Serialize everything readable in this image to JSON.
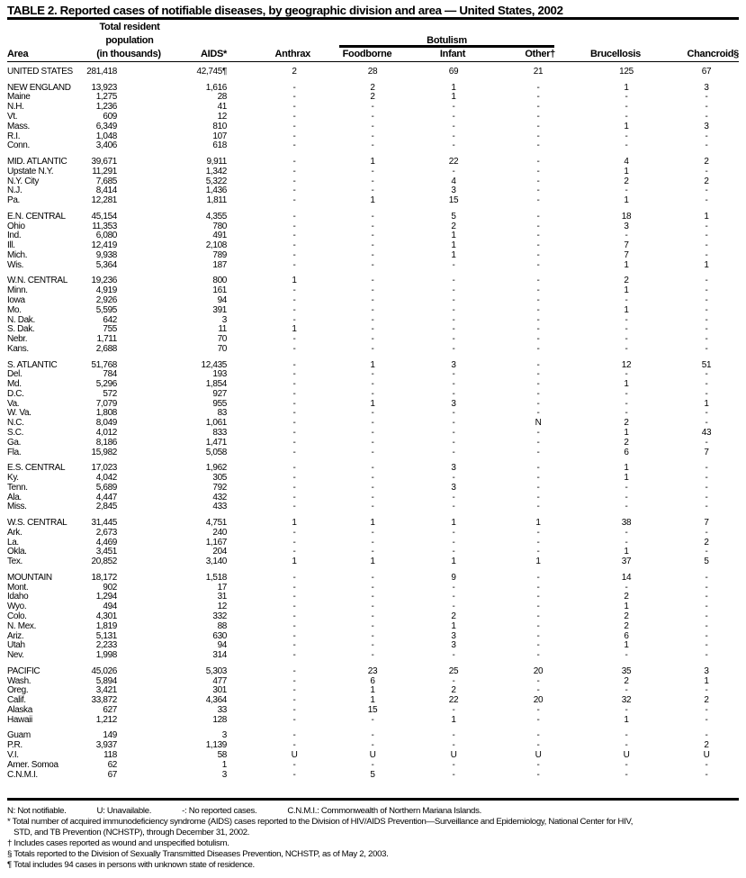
{
  "title": "TABLE 2. Reported cases of notifiable diseases, by geographic division and area — United States, 2002",
  "headers": {
    "area": "Area",
    "population": [
      "Total resident",
      "population",
      "(in thousands)"
    ],
    "aids": "AIDS*",
    "anthrax": "Anthrax",
    "botulism": "Botulism",
    "foodborne": "Foodborne",
    "infant": "Infant",
    "other": "Other†",
    "brucellosis": "Brucellosis",
    "chancroid": "Chancroid§"
  },
  "groups": [
    [
      [
        "UNITED STATES",
        "281,418",
        "42,745¶",
        "2",
        "28",
        "69",
        "21",
        "125",
        "67"
      ]
    ],
    [
      [
        "NEW ENGLAND",
        "13,923",
        "1,616",
        "-",
        "2",
        "1",
        "-",
        "1",
        "3"
      ],
      [
        "Maine",
        "1,275",
        "28",
        "-",
        "2",
        "1",
        "-",
        "-",
        "-"
      ],
      [
        "N.H.",
        "1,236",
        "41",
        "-",
        "-",
        "-",
        "-",
        "-",
        "-"
      ],
      [
        "Vt.",
        "609",
        "12",
        "-",
        "-",
        "-",
        "-",
        "-",
        "-"
      ],
      [
        "Mass.",
        "6,349",
        "810",
        "-",
        "-",
        "-",
        "-",
        "1",
        "3"
      ],
      [
        "R.I.",
        "1,048",
        "107",
        "-",
        "-",
        "-",
        "-",
        "-",
        "-"
      ],
      [
        "Conn.",
        "3,406",
        "618",
        "-",
        "-",
        "-",
        "-",
        "-",
        "-"
      ]
    ],
    [
      [
        "MID. ATLANTIC",
        "39,671",
        "9,911",
        "-",
        "1",
        "22",
        "-",
        "4",
        "2"
      ],
      [
        "Upstate N.Y.",
        "11,291",
        "1,342",
        "-",
        "-",
        "-",
        "-",
        "1",
        "-"
      ],
      [
        "N.Y. City",
        "7,685",
        "5,322",
        "-",
        "-",
        "4",
        "-",
        "2",
        "2"
      ],
      [
        "N.J.",
        "8,414",
        "1,436",
        "-",
        "-",
        "3",
        "-",
        "-",
        "-"
      ],
      [
        "Pa.",
        "12,281",
        "1,811",
        "-",
        "1",
        "15",
        "-",
        "1",
        "-"
      ]
    ],
    [
      [
        "E.N. CENTRAL",
        "45,154",
        "4,355",
        "-",
        "-",
        "5",
        "-",
        "18",
        "1"
      ],
      [
        "Ohio",
        "11,353",
        "780",
        "-",
        "-",
        "2",
        "-",
        "3",
        "-"
      ],
      [
        "Ind.",
        "6,080",
        "491",
        "-",
        "-",
        "1",
        "-",
        "-",
        "-"
      ],
      [
        "Ill.",
        "12,419",
        "2,108",
        "-",
        "-",
        "1",
        "-",
        "7",
        "-"
      ],
      [
        "Mich.",
        "9,938",
        "789",
        "-",
        "-",
        "1",
        "-",
        "7",
        "-"
      ],
      [
        "Wis.",
        "5,364",
        "187",
        "-",
        "-",
        "-",
        "-",
        "1",
        "1"
      ]
    ],
    [
      [
        "W.N. CENTRAL",
        "19,236",
        "800",
        "1",
        "-",
        "-",
        "-",
        "2",
        "-"
      ],
      [
        "Minn.",
        "4,919",
        "161",
        "-",
        "-",
        "-",
        "-",
        "1",
        "-"
      ],
      [
        "Iowa",
        "2,926",
        "94",
        "-",
        "-",
        "-",
        "-",
        "-",
        "-"
      ],
      [
        "Mo.",
        "5,595",
        "391",
        "-",
        "-",
        "-",
        "-",
        "1",
        "-"
      ],
      [
        "N. Dak.",
        "642",
        "3",
        "-",
        "-",
        "-",
        "-",
        "-",
        "-"
      ],
      [
        "S. Dak.",
        "755",
        "11",
        "1",
        "-",
        "-",
        "-",
        "-",
        "-"
      ],
      [
        "Nebr.",
        "1,711",
        "70",
        "-",
        "-",
        "-",
        "-",
        "-",
        "-"
      ],
      [
        "Kans.",
        "2,688",
        "70",
        "-",
        "-",
        "-",
        "-",
        "-",
        "-"
      ]
    ],
    [
      [
        "S. ATLANTIC",
        "51,768",
        "12,435",
        "-",
        "1",
        "3",
        "-",
        "12",
        "51"
      ],
      [
        "Del.",
        "784",
        "193",
        "-",
        "-",
        "-",
        "-",
        "-",
        "-"
      ],
      [
        "Md.",
        "5,296",
        "1,854",
        "-",
        "-",
        "-",
        "-",
        "1",
        "-"
      ],
      [
        "D.C.",
        "572",
        "927",
        "-",
        "-",
        "-",
        "-",
        "-",
        "-"
      ],
      [
        "Va.",
        "7,079",
        "955",
        "-",
        "1",
        "3",
        "-",
        "-",
        "1"
      ],
      [
        "W. Va.",
        "1,808",
        "83",
        "-",
        "-",
        "-",
        "-",
        "-",
        "-"
      ],
      [
        "N.C.",
        "8,049",
        "1,061",
        "-",
        "-",
        "-",
        "N",
        "2",
        "-"
      ],
      [
        "S.C.",
        "4,012",
        "833",
        "-",
        "-",
        "-",
        "-",
        "1",
        "43"
      ],
      [
        "Ga.",
        "8,186",
        "1,471",
        "-",
        "-",
        "-",
        "-",
        "2",
        "-"
      ],
      [
        "Fla.",
        "15,982",
        "5,058",
        "-",
        "-",
        "-",
        "-",
        "6",
        "7"
      ]
    ],
    [
      [
        "E.S. CENTRAL",
        "17,023",
        "1,962",
        "-",
        "-",
        "3",
        "-",
        "1",
        "-"
      ],
      [
        "Ky.",
        "4,042",
        "305",
        "-",
        "-",
        "-",
        "-",
        "1",
        "-"
      ],
      [
        "Tenn.",
        "5,689",
        "792",
        "-",
        "-",
        "3",
        "-",
        "-",
        "-"
      ],
      [
        "Ala.",
        "4,447",
        "432",
        "-",
        "-",
        "-",
        "-",
        "-",
        "-"
      ],
      [
        "Miss.",
        "2,845",
        "433",
        "-",
        "-",
        "-",
        "-",
        "-",
        "-"
      ]
    ],
    [
      [
        "W.S. CENTRAL",
        "31,445",
        "4,751",
        "1",
        "1",
        "1",
        "1",
        "38",
        "7"
      ],
      [
        "Ark.",
        "2,673",
        "240",
        "-",
        "-",
        "-",
        "-",
        "-",
        "-"
      ],
      [
        "La.",
        "4,469",
        "1,167",
        "-",
        "-",
        "-",
        "-",
        "-",
        "2"
      ],
      [
        "Okla.",
        "3,451",
        "204",
        "-",
        "-",
        "-",
        "-",
        "1",
        "-"
      ],
      [
        "Tex.",
        "20,852",
        "3,140",
        "1",
        "1",
        "1",
        "1",
        "37",
        "5"
      ]
    ],
    [
      [
        "MOUNTAIN",
        "18,172",
        "1,518",
        "-",
        "-",
        "9",
        "-",
        "14",
        "-"
      ],
      [
        "Mont.",
        "902",
        "17",
        "-",
        "-",
        "-",
        "-",
        "-",
        "-"
      ],
      [
        "Idaho",
        "1,294",
        "31",
        "-",
        "-",
        "-",
        "-",
        "2",
        "-"
      ],
      [
        "Wyo.",
        "494",
        "12",
        "-",
        "-",
        "-",
        "-",
        "1",
        "-"
      ],
      [
        "Colo.",
        "4,301",
        "332",
        "-",
        "-",
        "2",
        "-",
        "2",
        "-"
      ],
      [
        "N. Mex.",
        "1,819",
        "88",
        "-",
        "-",
        "1",
        "-",
        "2",
        "-"
      ],
      [
        "Ariz.",
        "5,131",
        "630",
        "-",
        "-",
        "3",
        "-",
        "6",
        "-"
      ],
      [
        "Utah",
        "2,233",
        "94",
        "-",
        "-",
        "3",
        "-",
        "1",
        "-"
      ],
      [
        "Nev.",
        "1,998",
        "314",
        "-",
        "-",
        "-",
        "-",
        "-",
        "-"
      ]
    ],
    [
      [
        "PACIFIC",
        "45,026",
        "5,303",
        "-",
        "23",
        "25",
        "20",
        "35",
        "3"
      ],
      [
        "Wash.",
        "5,894",
        "477",
        "-",
        "6",
        "-",
        "-",
        "2",
        "1"
      ],
      [
        "Oreg.",
        "3,421",
        "301",
        "-",
        "1",
        "2",
        "-",
        "-",
        "-"
      ],
      [
        "Calif.",
        "33,872",
        "4,364",
        "-",
        "1",
        "22",
        "20",
        "32",
        "2"
      ],
      [
        "Alaska",
        "627",
        "33",
        "-",
        "15",
        "-",
        "-",
        "-",
        "-"
      ],
      [
        "Hawaii",
        "1,212",
        "128",
        "-",
        "-",
        "1",
        "-",
        "1",
        "-"
      ]
    ],
    [
      [
        "Guam",
        "149",
        "3",
        "-",
        "-",
        "-",
        "-",
        "-",
        "-"
      ],
      [
        "P.R.",
        "3,937",
        "1,139",
        "-",
        "-",
        "-",
        "-",
        "-",
        "2"
      ],
      [
        "V.I.",
        "118",
        "58",
        "U",
        "U",
        "U",
        "U",
        "U",
        "U"
      ],
      [
        "Amer. Somoa",
        "62",
        "1",
        "-",
        "-",
        "-",
        "-",
        "-",
        "-"
      ],
      [
        "C.N.M.I.",
        "67",
        "3",
        "-",
        "5",
        "-",
        "-",
        "-",
        "-"
      ]
    ]
  ],
  "legend": [
    "N: Not notifiable.",
    "U: Unavailable.",
    "-: No reported cases.",
    "C.N.M.I.: Commonwealth of Northern Mariana Islands."
  ],
  "footnotes": [
    "* Total number of acquired immunodeficiency syndrome (AIDS) cases reported to the Division of HIV/AIDS Prevention—Surveillance and Epidemiology, National Center for HIV,",
    "   STD, and TB Prevention (NCHSTP), through December 31, 2002.",
    "† Includes cases reported as wound and unspecified botulism.",
    "§ Totals reported to the Division of Sexually Transmitted Diseases Prevention, NCHSTP, as of May 2, 2003.",
    "¶ Total includes 94 cases in persons with unknown state of residence."
  ]
}
